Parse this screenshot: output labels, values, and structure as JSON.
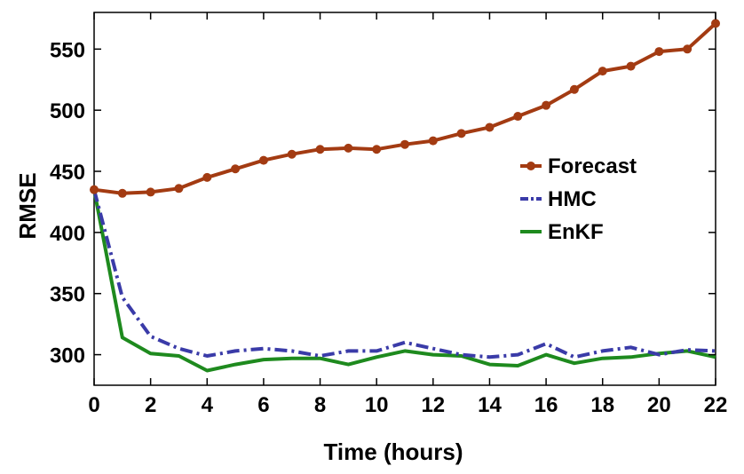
{
  "chart_data": {
    "type": "line",
    "title": "",
    "xlabel": "Time (hours)",
    "ylabel": "RMSE",
    "xlim": [
      0,
      22
    ],
    "ylim": [
      275,
      580
    ],
    "xticks": [
      0,
      2,
      4,
      6,
      8,
      10,
      12,
      14,
      16,
      18,
      20,
      22
    ],
    "yticks": [
      300,
      350,
      400,
      450,
      500,
      550
    ],
    "grid": false,
    "legend_position": "right",
    "x": [
      0,
      1,
      2,
      3,
      4,
      5,
      6,
      7,
      8,
      9,
      10,
      11,
      12,
      13,
      14,
      15,
      16,
      17,
      18,
      19,
      20,
      21,
      22
    ],
    "series": [
      {
        "name": "Forecast",
        "color": "#A33B12",
        "style": "solid-circle-markers",
        "values": [
          435,
          432,
          433,
          436,
          445,
          452,
          459,
          464,
          468,
          469,
          468,
          472,
          475,
          481,
          486,
          495,
          504,
          517,
          532,
          536,
          548,
          550,
          571
        ]
      },
      {
        "name": "HMC",
        "color": "#3A3BA8",
        "style": "dash-dot",
        "values": [
          435,
          347,
          315,
          305,
          299,
          303,
          305,
          303,
          299,
          303,
          303,
          310,
          305,
          300,
          298,
          300,
          309,
          298,
          303,
          306,
          300,
          304,
          303
        ]
      },
      {
        "name": "EnKF",
        "color": "#1E8A1E",
        "style": "solid",
        "values": [
          435,
          314,
          301,
          299,
          287,
          292,
          296,
          297,
          297,
          292,
          298,
          303,
          300,
          299,
          292,
          291,
          300,
          293,
          297,
          298,
          301,
          303,
          298
        ]
      }
    ]
  }
}
